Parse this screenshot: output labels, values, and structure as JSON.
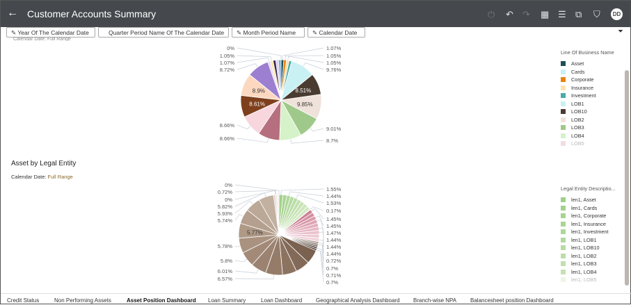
{
  "header": {
    "title": "Customer Accounts Summary",
    "back_icon": "arrow-left-icon",
    "user_initials": "DD",
    "icons": [
      "refresh-icon",
      "undo-icon",
      "redo-icon",
      "data-icon",
      "narrate-icon",
      "export-icon",
      "bookmark-icon"
    ]
  },
  "filters": [
    {
      "label": "Year Of The Calendar Date",
      "pinned": true
    },
    {
      "label": "Quarter Period Name Of The Calendar Date",
      "pinned": false
    },
    {
      "label": "Month Period Name",
      "pinned": true
    },
    {
      "label": "Calendar Date",
      "pinned": true
    }
  ],
  "clipped_subtitle": "Calendar Date: Full Range",
  "section2": {
    "title": "Asset by Legal Entity",
    "subtitle_label": "Calendar Date:",
    "subtitle_value": "Full Range"
  },
  "legend1": {
    "title": "Line Of Business Name",
    "items": [
      {
        "label": "Asset",
        "color": "#1f4e5a"
      },
      {
        "label": "Cards",
        "color": "#c8f0f5"
      },
      {
        "label": "Corporate",
        "color": "#e8820c"
      },
      {
        "label": "Insurance",
        "color": "#fde2b0"
      },
      {
        "label": "Investment",
        "color": "#4aaba8"
      },
      {
        "label": "LOB1",
        "color": "#c9f1f4"
      },
      {
        "label": "LOB10",
        "color": "#4a3b30"
      },
      {
        "label": "LOB2",
        "color": "#efe2da"
      },
      {
        "label": "LOB3",
        "color": "#9fc98a"
      },
      {
        "label": "LOB4",
        "color": "#d6f2c8"
      },
      {
        "label": "LOB5",
        "color": "#d9a0ae"
      }
    ]
  },
  "legend2": {
    "title": "Legal Entity Descriptio...",
    "items": [
      {
        "label": "len1, Asset",
        "color": "#9fcf8a"
      },
      {
        "label": "len1, Cards",
        "color": "#a3d18e"
      },
      {
        "label": "len1, Corporate",
        "color": "#a7d392"
      },
      {
        "label": "len1, Insurance",
        "color": "#abd596"
      },
      {
        "label": "len1, Investment",
        "color": "#afd79a"
      },
      {
        "label": "len1, LOB1",
        "color": "#b3d99e"
      },
      {
        "label": "len1, LOB10",
        "color": "#b7dba3"
      },
      {
        "label": "len1, LOB2",
        "color": "#bcdda8"
      },
      {
        "label": "len1, LOB3",
        "color": "#c1dfad"
      },
      {
        "label": "len1, LOB4",
        "color": "#c6e1b3"
      },
      {
        "label": "len1, LOB5",
        "color": "#cde5bb"
      }
    ]
  },
  "chart_data": [
    {
      "type": "pie",
      "title": "",
      "legend": "right",
      "slices": [
        {
          "name": "Asset",
          "value": 1.07,
          "label": "1.07%",
          "color": "#1f4e5a"
        },
        {
          "name": "Corporate",
          "value": 1.05,
          "label": "1.05%",
          "color": "#e8820c"
        },
        {
          "name": "Insurance",
          "value": 1.05,
          "label": "1.05%",
          "color": "#fde2b0"
        },
        {
          "name": "Investment",
          "value": 1.05,
          "label": "",
          "color": "#4aaba8"
        },
        {
          "name": "LOB1",
          "value": 9.76,
          "label": "9.76%",
          "color": "#c9f1f4"
        },
        {
          "name": "LOB10",
          "value": 8.51,
          "label": "8.51%",
          "color": "#4a3b30"
        },
        {
          "name": "LOB2",
          "value": 9.85,
          "label": "9.85%",
          "color": "#efe2da"
        },
        {
          "name": "LOB3",
          "value": 9.01,
          "label": "9.01%",
          "color": "#9fc98a"
        },
        {
          "name": "LOB4",
          "value": 8.7,
          "label": "8.7%",
          "color": "#d6f2c8"
        },
        {
          "name": "LOB5",
          "value": 8.66,
          "label": "8.66%",
          "color": "#b56f7e"
        },
        {
          "value": 8.66,
          "label": "8.66%",
          "color": "#f7d6de"
        },
        {
          "value": 8.61,
          "label": "8.61%",
          "color": "#7d3f1c"
        },
        {
          "value": 8.9,
          "label": "8.9%",
          "color": "#fcd8c0"
        },
        {
          "value": 8.72,
          "label": "8.72%",
          "color": "#9c7fd0"
        },
        {
          "value": 1.07,
          "label": "1.07%",
          "color": "#e6d9f5"
        },
        {
          "value": 1.05,
          "label": "1.05%",
          "color": "#fde7a6"
        },
        {
          "value": 1.07,
          "label": "",
          "color": "#3b2352"
        },
        {
          "value": 1.05,
          "label": "",
          "color": "#dcd2f0"
        },
        {
          "value": 1.05,
          "label": "",
          "color": "#7fb2d6"
        },
        {
          "value": 0,
          "label": "0%",
          "color": "#cccccc"
        }
      ]
    },
    {
      "type": "pie",
      "title": "Asset by Legal Entity",
      "legend": "right",
      "slices": [
        {
          "value": 1.55,
          "label": "1.55%",
          "color": "#a3d18e"
        },
        {
          "value": 1.5,
          "label": "",
          "color": "#a9d494"
        },
        {
          "value": 1.44,
          "label": "1.44%",
          "color": "#afd79a"
        },
        {
          "value": 1.5,
          "label": "",
          "color": "#b5daa1"
        },
        {
          "value": 1.53,
          "label": "1.53%",
          "color": "#bbdda7"
        },
        {
          "value": 1.5,
          "label": "",
          "color": "#c1e0ae"
        },
        {
          "value": 1.5,
          "label": "",
          "color": "#c7e3b5"
        },
        {
          "value": 1.5,
          "label": "",
          "color": "#cde6bc"
        },
        {
          "value": 1.5,
          "label": "",
          "color": "#d3e9c3"
        },
        {
          "value": 0.17,
          "label": "0.17%",
          "color": "#d9ecca"
        },
        {
          "value": 1.45,
          "label": "1.45%",
          "color": "#cf8398"
        },
        {
          "value": 1.45,
          "label": "",
          "color": "#d48ea1"
        },
        {
          "value": 1.45,
          "label": "1.45%",
          "color": "#d999aa"
        },
        {
          "value": 1.47,
          "label": "1.47%",
          "color": "#dea4b4"
        },
        {
          "value": 1.45,
          "label": "",
          "color": "#e2aebd"
        },
        {
          "value": 1.44,
          "label": "1.44%",
          "color": "#e6b8c5"
        },
        {
          "value": 1.44,
          "label": "1.44%",
          "color": "#eac2ce"
        },
        {
          "value": 1.45,
          "label": "",
          "color": "#eecbd6"
        },
        {
          "value": 1.44,
          "label": "1.44%",
          "color": "#f2d4de"
        },
        {
          "value": 0.72,
          "label": "0.72%",
          "color": "#a89c92"
        },
        {
          "value": 0.7,
          "label": "0.7%",
          "color": "#8f8176"
        },
        {
          "value": 0.7,
          "label": "",
          "color": "#6f6057"
        },
        {
          "value": 0.71,
          "label": "0.71%",
          "color": "#5b4a40"
        },
        {
          "value": 0.7,
          "label": "0.7%",
          "color": "#4a3b33"
        },
        {
          "value": 5.5,
          "label": "",
          "color": "#7a6150"
        },
        {
          "value": 5.5,
          "label": "",
          "color": "#836a58"
        },
        {
          "value": 5.5,
          "label": "",
          "color": "#8c7360"
        },
        {
          "value": 6.57,
          "label": "6.57%",
          "color": "#957c69"
        },
        {
          "value": 6.01,
          "label": "6.01%",
          "color": "#9c8371"
        },
        {
          "value": 5.8,
          "label": "5.8%",
          "color": "#a38a78"
        },
        {
          "value": 5.78,
          "label": "5.78%",
          "color": "#a99280"
        },
        {
          "value": 5.77,
          "label": "5.77%",
          "color": "#af9987"
        },
        {
          "value": 5.74,
          "label": "5.74%",
          "color": "#b5a08f"
        },
        {
          "value": 5.93,
          "label": "5.93%",
          "color": "#bba897"
        },
        {
          "value": 5.82,
          "label": "5.82%",
          "color": "#c2b0a1"
        },
        {
          "value": 0.7,
          "label": "",
          "color": "#d8ccc2"
        },
        {
          "value": 0,
          "label": "0%",
          "color": "#e5dcd5"
        },
        {
          "value": 0.72,
          "label": "0.72%",
          "color": "#ede6e0"
        },
        {
          "value": 0.7,
          "label": "",
          "color": "#f3eee9"
        },
        {
          "value": 0,
          "label": "0%",
          "color": "#f6f2ef"
        }
      ]
    }
  ],
  "tabs": [
    {
      "label": "Credit Status",
      "active": false
    },
    {
      "label": "Non Performing Assets",
      "active": false
    },
    {
      "label": "Asset Position Dashboard",
      "active": true
    },
    {
      "label": "Loan Summary",
      "active": false
    },
    {
      "label": "Loan Dashboard",
      "active": false
    },
    {
      "label": "Geographical Analysis Dashboard",
      "active": false
    },
    {
      "label": "Branch-wise NPA",
      "active": false
    },
    {
      "label": "Balancesheet position Dashboard",
      "active": false
    }
  ]
}
